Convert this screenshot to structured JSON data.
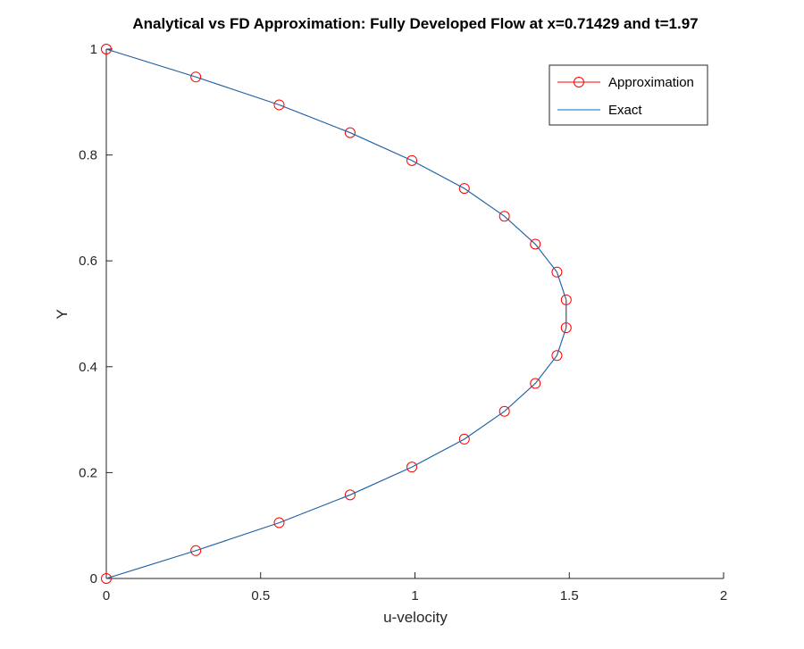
{
  "chart_data": {
    "type": "line",
    "title": "Analytical vs FD Approximation: Fully Developed Flow at x=0.71429 and t=1.97",
    "xlabel": "u-velocity",
    "ylabel": "Y",
    "xlim": [
      0,
      2
    ],
    "ylim": [
      0,
      1
    ],
    "xticks": [
      0,
      0.5,
      1,
      1.5,
      2
    ],
    "xtick_labels": [
      "0",
      "0.5",
      "1",
      "1.5",
      "2"
    ],
    "yticks": [
      0,
      0.2,
      0.4,
      0.6,
      0.8,
      1
    ],
    "ytick_labels": [
      "0",
      "0.2",
      "0.4",
      "0.6",
      "0.8",
      "1"
    ],
    "grid": false,
    "legend_position": "top-right",
    "series": [
      {
        "name": "Approximation",
        "color": "#ff0000",
        "marker": "circle",
        "x": [
          0,
          0.29,
          0.56,
          0.79,
          0.99,
          1.16,
          1.29,
          1.39,
          1.46,
          1.49,
          1.49,
          1.46,
          1.39,
          1.29,
          1.16,
          0.99,
          0.79,
          0.56,
          0.29,
          0
        ],
        "y": [
          0,
          0.0526,
          0.1053,
          0.1579,
          0.2105,
          0.2632,
          0.3158,
          0.3684,
          0.4211,
          0.4737,
          0.5263,
          0.5789,
          0.6316,
          0.6842,
          0.7368,
          0.7895,
          0.8421,
          0.8947,
          0.9474,
          1
        ]
      },
      {
        "name": "Exact",
        "color": "#0072bd",
        "marker": "none",
        "x": [
          0,
          0.29,
          0.56,
          0.79,
          0.99,
          1.16,
          1.29,
          1.39,
          1.46,
          1.49,
          1.49,
          1.46,
          1.39,
          1.29,
          1.16,
          0.99,
          0.79,
          0.56,
          0.29,
          0
        ],
        "y": [
          0,
          0.0526,
          0.1053,
          0.1579,
          0.2105,
          0.2632,
          0.3158,
          0.3684,
          0.4211,
          0.4737,
          0.5263,
          0.5789,
          0.6316,
          0.6842,
          0.7368,
          0.7895,
          0.8421,
          0.8947,
          0.9474,
          1
        ]
      }
    ]
  }
}
